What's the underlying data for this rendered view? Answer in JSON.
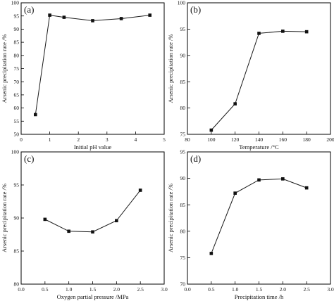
{
  "figure": {
    "panels": [
      "(a)",
      "(b)",
      "(c)",
      "(d)"
    ]
  },
  "chart_data": [
    {
      "type": "line",
      "panel_label": "(a)",
      "xlabel": "Initial pH value",
      "ylabel": "Arsenic precipitation rate /%",
      "xlim": [
        0,
        5
      ],
      "ylim": [
        50,
        100
      ],
      "xticks": [
        0,
        1,
        2,
        3,
        4,
        5
      ],
      "yticks": [
        50,
        55,
        60,
        65,
        70,
        75,
        80,
        85,
        90,
        95,
        100
      ],
      "grid": false,
      "marker": "square",
      "series": [
        {
          "x": [
            0.5,
            1,
            1.5,
            2.5,
            3.5,
            4.5
          ],
          "y": [
            57.5,
            95.3,
            94.5,
            93.2,
            94.0,
            95.3
          ]
        }
      ]
    },
    {
      "type": "line",
      "panel_label": "(b)",
      "xlabel": "Temperature /°C",
      "ylabel": "Arsenic precipitation rate /%",
      "xlim": [
        80,
        200
      ],
      "ylim": [
        75,
        100
      ],
      "xticks": [
        80,
        100,
        120,
        140,
        160,
        180,
        200
      ],
      "yticks": [
        75,
        80,
        85,
        90,
        95,
        100
      ],
      "grid": false,
      "marker": "square",
      "series": [
        {
          "x": [
            100,
            120,
            140,
            160,
            180
          ],
          "y": [
            75.8,
            80.8,
            94.2,
            94.6,
            94.5
          ]
        }
      ]
    },
    {
      "type": "line",
      "panel_label": "(c)",
      "xlabel": "Oxygen partial pressure /MPa",
      "ylabel": "Arsenic precipitation rate /%",
      "xlim": [
        0,
        3
      ],
      "ylim": [
        80,
        100
      ],
      "xticks": [
        0.0,
        0.5,
        1.0,
        1.5,
        2.0,
        2.5,
        3.0
      ],
      "yticks": [
        80,
        85,
        90,
        95,
        100
      ],
      "grid": false,
      "marker": "square",
      "series": [
        {
          "x": [
            0.5,
            1.0,
            1.5,
            2.0,
            2.5
          ],
          "y": [
            89.8,
            88.0,
            87.9,
            89.6,
            94.2
          ]
        }
      ]
    },
    {
      "type": "line",
      "panel_label": "(d)",
      "xlabel": "Precipitation time /h",
      "ylabel": "Arsenic precipitation rate /%",
      "xlim": [
        0,
        3
      ],
      "ylim": [
        70,
        95
      ],
      "xticks": [
        0.0,
        0.5,
        1.0,
        1.5,
        2.0,
        2.5,
        3.0
      ],
      "yticks": [
        70,
        75,
        80,
        85,
        90,
        95
      ],
      "grid": false,
      "marker": "square",
      "series": [
        {
          "x": [
            0.5,
            1.0,
            1.5,
            2.0,
            2.5
          ],
          "y": [
            75.8,
            87.2,
            89.7,
            89.9,
            88.2
          ]
        }
      ]
    }
  ]
}
